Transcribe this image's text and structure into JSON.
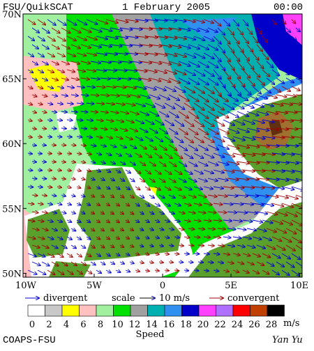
{
  "header": {
    "product": "FSU/QuikSCAT",
    "date": "1 February 2005",
    "time": "00:00"
  },
  "map": {
    "lat_range": [
      49.7,
      70
    ],
    "lon_range": [
      -10.2,
      10.2
    ],
    "lat_ticks": [
      {
        "value": 70,
        "label": "70N"
      },
      {
        "value": 65,
        "label": "65N"
      },
      {
        "value": 60,
        "label": "60N"
      },
      {
        "value": 55,
        "label": "55N"
      },
      {
        "value": 50,
        "label": "50N"
      }
    ],
    "lon_ticks": [
      {
        "value": -10,
        "label": "10W"
      },
      {
        "value": -5,
        "label": "5W"
      },
      {
        "value": 0,
        "label": "0"
      },
      {
        "value": 5,
        "label": "5E"
      },
      {
        "value": 10,
        "label": "10E"
      }
    ]
  },
  "legend": {
    "divergent": "divergent",
    "scale": "scale",
    "scale_speed": "10 m/s",
    "convergent": "convergent",
    "divergent_color": "#0000d0",
    "convergent_color": "#a00000"
  },
  "colorbar": {
    "ticks": [
      0,
      2,
      4,
      6,
      8,
      10,
      12,
      14,
      16,
      18,
      20,
      22,
      24,
      26,
      28
    ],
    "colors": [
      "#ffffff",
      "#c8c8c8",
      "#ffff00",
      "#ffc0c0",
      "#a0f0a0",
      "#00e000",
      "#a0a0a0",
      "#00b0b0",
      "#3090f0",
      "#0000c8",
      "#ff40ff",
      "#b070ff",
      "#ff0000",
      "#c04000",
      "#000000"
    ],
    "unit": "m/s",
    "label": "Speed"
  },
  "footer": {
    "org": "COAPS-FSU",
    "author": "Yan Yu"
  }
}
